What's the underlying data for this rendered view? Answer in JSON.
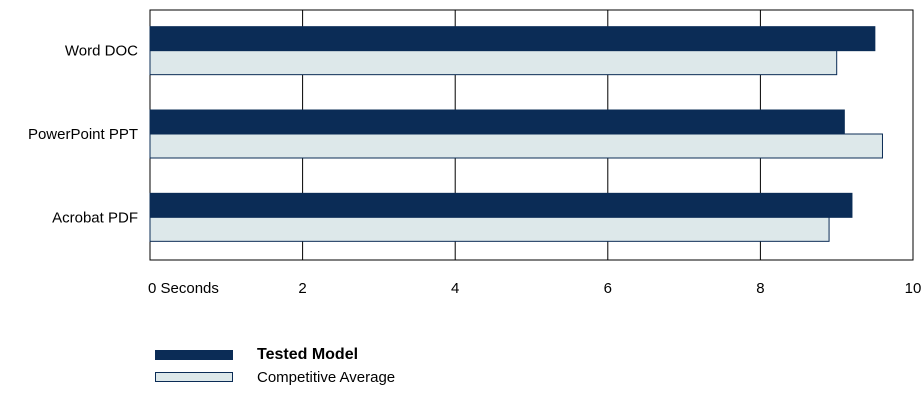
{
  "chart_data": {
    "type": "bar",
    "orientation": "horizontal",
    "categories": [
      "Word DOC",
      "PowerPoint PPT",
      "Acrobat PDF"
    ],
    "series": [
      {
        "name": "Tested Model",
        "values": [
          9.5,
          9.1,
          9.2
        ],
        "color": "#0b2c56"
      },
      {
        "name": "Competitive Average",
        "values": [
          9.0,
          9.6,
          8.9
        ],
        "color": "#dde8ea"
      }
    ],
    "xlim": [
      0,
      10
    ],
    "xticks": [
      0,
      2,
      4,
      6,
      8,
      10
    ],
    "xtick_labels": [
      "0 Seconds",
      "2",
      "4",
      "6",
      "8",
      "10"
    ],
    "grid": true,
    "legend_position": "bottom-left"
  },
  "legend": {
    "items": [
      {
        "label": "Tested Model",
        "color": "#0b2c56"
      },
      {
        "label": "Competitive Average",
        "color": "#dde8ea"
      }
    ]
  }
}
